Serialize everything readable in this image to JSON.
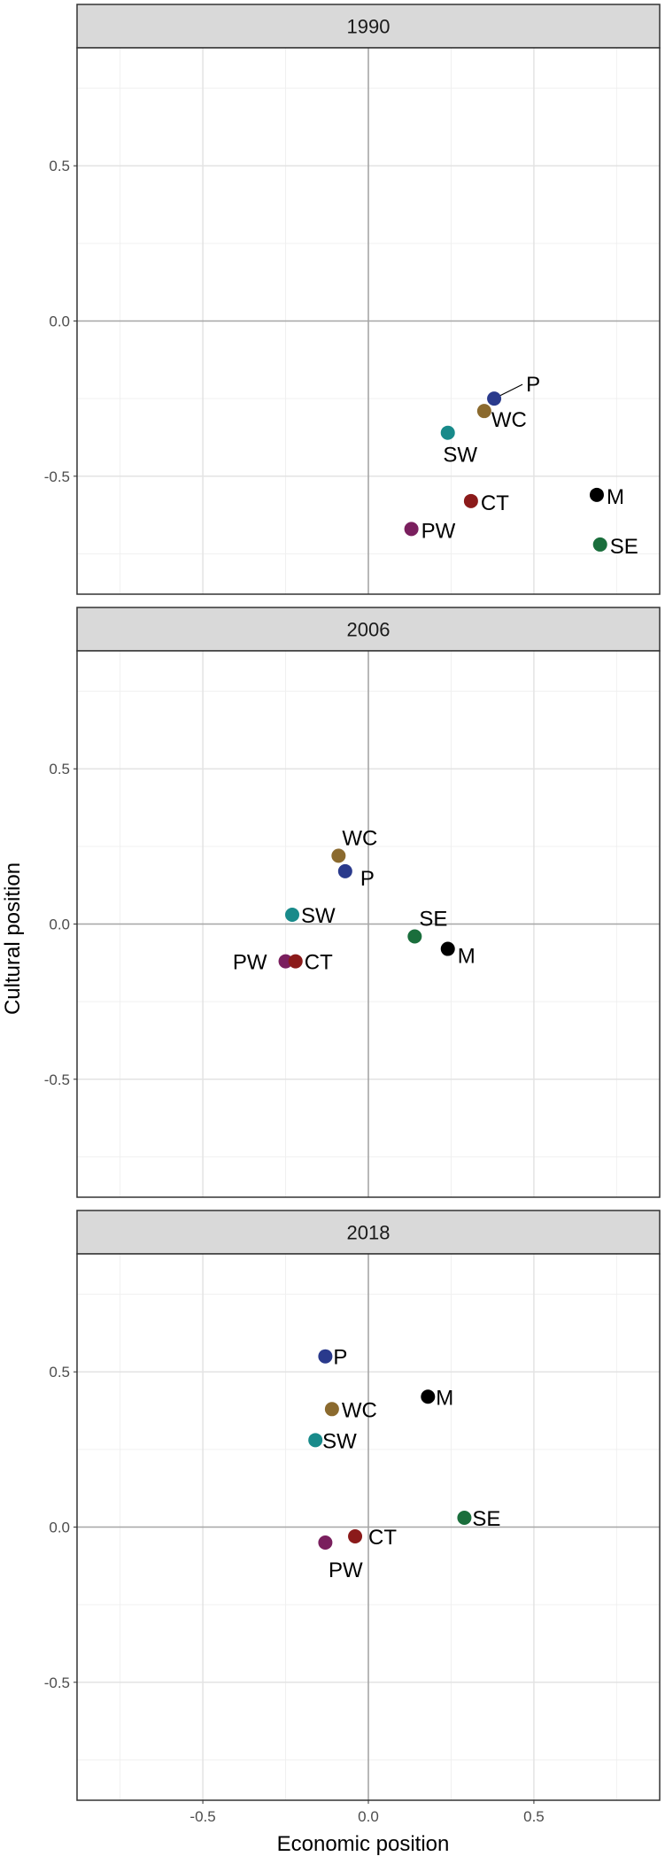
{
  "chart_data": {
    "type": "scatter",
    "xlabel": "Economic position",
    "ylabel": "Cultural position",
    "xlim": [
      -0.88,
      0.88
    ],
    "ylim": [
      -0.88,
      0.88
    ],
    "x_ticks": [
      -0.5,
      0.0,
      0.5
    ],
    "x_tick_labels": [
      "-0.5",
      "0.0",
      "0.5"
    ],
    "y_ticks": [
      -0.5,
      0.0,
      0.5
    ],
    "y_tick_labels": [
      "-0.5",
      "0.0",
      "0.5"
    ],
    "grid": true,
    "legend": "none",
    "colors": {
      "P": "#2a3a8c",
      "WC": "#8b6a2e",
      "SW": "#188a8a",
      "CT": "#8b1a1a",
      "PW": "#7a1f5e",
      "M": "#000000",
      "SE": "#1a6e3c"
    },
    "panels": [
      {
        "title": "1990",
        "points": [
          {
            "label": "P",
            "x": 0.38,
            "y": -0.25
          },
          {
            "label": "WC",
            "x": 0.35,
            "y": -0.29
          },
          {
            "label": "SW",
            "x": 0.24,
            "y": -0.36
          },
          {
            "label": "CT",
            "x": 0.31,
            "y": -0.58
          },
          {
            "label": "PW",
            "x": 0.13,
            "y": -0.67
          },
          {
            "label": "M",
            "x": 0.69,
            "y": -0.56
          },
          {
            "label": "SE",
            "x": 0.7,
            "y": -0.72
          }
        ]
      },
      {
        "title": "2006",
        "points": [
          {
            "label": "WC",
            "x": -0.09,
            "y": 0.22
          },
          {
            "label": "P",
            "x": -0.07,
            "y": 0.17
          },
          {
            "label": "SW",
            "x": -0.23,
            "y": 0.03
          },
          {
            "label": "PW",
            "x": -0.25,
            "y": -0.12
          },
          {
            "label": "CT",
            "x": -0.22,
            "y": -0.12
          },
          {
            "label": "SE",
            "x": 0.14,
            "y": -0.04
          },
          {
            "label": "M",
            "x": 0.24,
            "y": -0.08
          }
        ]
      },
      {
        "title": "2018",
        "points": [
          {
            "label": "P",
            "x": -0.13,
            "y": 0.55
          },
          {
            "label": "WC",
            "x": -0.11,
            "y": 0.38
          },
          {
            "label": "SW",
            "x": -0.16,
            "y": 0.28
          },
          {
            "label": "M",
            "x": 0.18,
            "y": 0.42
          },
          {
            "label": "SE",
            "x": 0.29,
            "y": 0.03
          },
          {
            "label": "CT",
            "x": -0.04,
            "y": -0.03
          },
          {
            "label": "PW",
            "x": -0.13,
            "y": -0.05
          }
        ]
      }
    ]
  }
}
